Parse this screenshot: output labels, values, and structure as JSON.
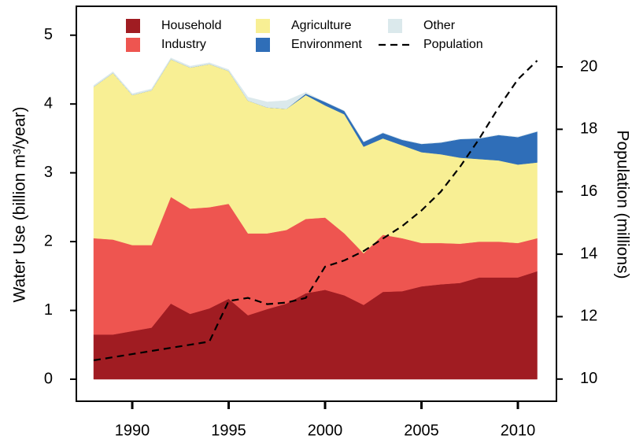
{
  "chart_data": {
    "type": "stacked-area",
    "y_label": "Water Use (billion m³/year)",
    "y2_label": "Population (millions)",
    "x": [
      1988,
      1989,
      1990,
      1991,
      1992,
      1993,
      1994,
      1995,
      1996,
      1997,
      1998,
      1999,
      2000,
      2001,
      2002,
      2003,
      2004,
      2005,
      2006,
      2007,
      2008,
      2009,
      2010,
      2011
    ],
    "xlim": [
      1987.1,
      2012.0
    ],
    "xticks": [
      1990,
      1995,
      2000,
      2005,
      2010
    ],
    "ylim": [
      -0.32,
      5.42
    ],
    "yticks": [
      0,
      1,
      2,
      3,
      4,
      5
    ],
    "y2lim": [
      9.29,
      21.94
    ],
    "y2ticks": [
      10,
      12,
      14,
      16,
      18,
      20
    ],
    "legend": "top",
    "series": [
      {
        "name": "Household",
        "color": "#a01c22",
        "values": [
          0.65,
          0.65,
          0.7,
          0.75,
          1.1,
          0.95,
          1.03,
          1.17,
          0.93,
          1.02,
          1.1,
          1.25,
          1.3,
          1.22,
          1.08,
          1.27,
          1.28,
          1.35,
          1.38,
          1.4,
          1.48,
          1.48,
          1.48,
          1.57
        ]
      },
      {
        "name": "Industry",
        "color": "#ee5550",
        "values": [
          1.4,
          1.38,
          1.25,
          1.2,
          1.55,
          1.53,
          1.47,
          1.38,
          1.19,
          1.1,
          1.07,
          1.08,
          1.05,
          0.9,
          0.75,
          0.83,
          0.77,
          0.63,
          0.6,
          0.57,
          0.52,
          0.52,
          0.5,
          0.48
        ]
      },
      {
        "name": "Agriculture",
        "color": "#f8ef94",
        "values": [
          2.2,
          2.42,
          2.18,
          2.25,
          2.0,
          2.05,
          2.08,
          1.93,
          1.93,
          1.83,
          1.76,
          1.8,
          1.63,
          1.73,
          1.55,
          1.4,
          1.35,
          1.32,
          1.29,
          1.25,
          1.2,
          1.18,
          1.14,
          1.1
        ]
      },
      {
        "name": "Environment",
        "color": "#2f6eb8",
        "values": [
          0,
          0,
          0,
          0,
          0,
          0,
          0,
          0,
          0,
          0,
          0,
          0.02,
          0.05,
          0.05,
          0.07,
          0.08,
          0.08,
          0.12,
          0.17,
          0.27,
          0.3,
          0.37,
          0.4,
          0.45
        ]
      },
      {
        "name": "Other",
        "color": "#dbe9ec",
        "values": [
          0.02,
          0.02,
          0.02,
          0.02,
          0.02,
          0.02,
          0.02,
          0.02,
          0.05,
          0.08,
          0.12,
          0.02,
          0,
          0,
          0,
          0,
          0,
          0,
          0,
          0,
          0,
          0,
          0,
          0
        ]
      },
      {
        "name": "Population",
        "color": "#000000",
        "axis": "y2",
        "dash": true,
        "values": [
          10.6,
          10.7,
          10.8,
          10.9,
          11.0,
          11.1,
          11.2,
          12.5,
          12.6,
          12.4,
          12.45,
          12.6,
          13.6,
          13.8,
          14.1,
          14.5,
          14.9,
          15.4,
          16.0,
          16.8,
          17.7,
          18.7,
          19.6,
          20.2
        ]
      }
    ]
  }
}
